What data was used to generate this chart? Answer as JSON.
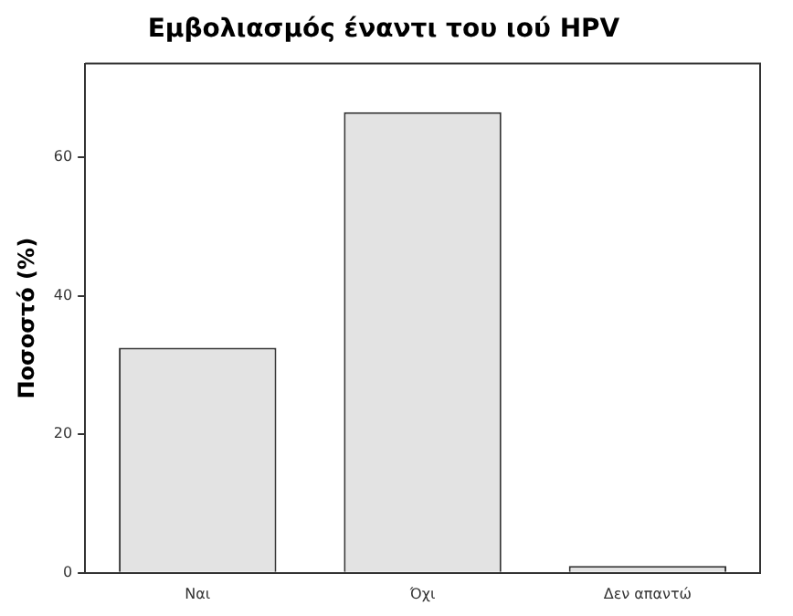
{
  "chart_data": {
    "type": "bar",
    "title": "Εμβολιασμός έναντι του ιού HPV",
    "ylabel": "Ποσοστό (%)",
    "categories": [
      "Ναι",
      "Όχι",
      "Δεν απαντώ"
    ],
    "values": [
      32.5,
      66.5,
      1.0
    ],
    "color": "#e3e3e3",
    "ylim": [
      0,
      73.5
    ],
    "yticks": [
      0,
      20,
      40,
      60
    ],
    "grid": false,
    "legend": false
  }
}
